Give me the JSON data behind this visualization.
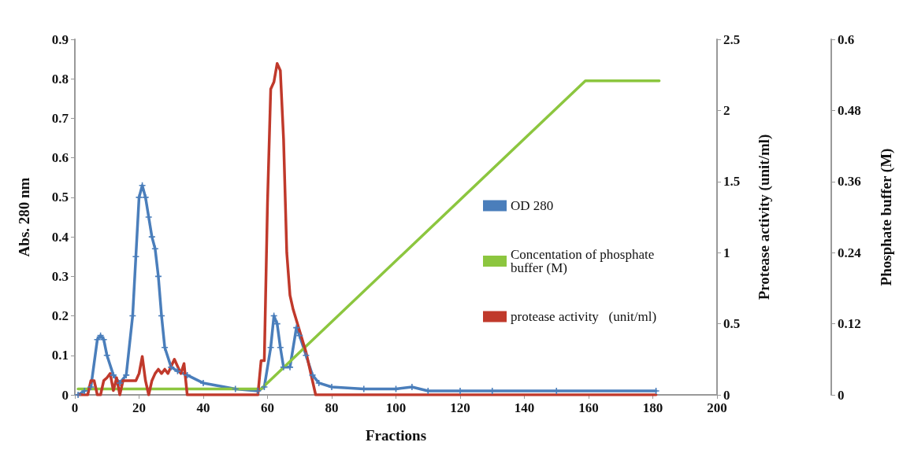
{
  "chart_data": {
    "type": "line",
    "xlabel": "Fractions",
    "ylabel": "Abs. 280 nm",
    "y2label": "Protease activity (unit/ml)",
    "y3label": "Phosphate buffer (M)",
    "xlim": [
      0,
      200
    ],
    "xticks": [
      0,
      20,
      40,
      60,
      80,
      100,
      120,
      140,
      160,
      180,
      200
    ],
    "ylim": [
      0,
      0.9
    ],
    "yticks": [
      0,
      0.1,
      0.2,
      0.3,
      0.4,
      0.5,
      0.6,
      0.7,
      0.8,
      0.9
    ],
    "y2lim": [
      0,
      2.5
    ],
    "y2ticks": [
      0,
      0.5,
      1,
      1.5,
      2,
      2.5
    ],
    "y3lim": [
      0,
      0.6
    ],
    "y3ticks": [
      0,
      0.12,
      0.24,
      0.36,
      0.48,
      0.6
    ],
    "grid": false,
    "legend": "right",
    "series": [
      {
        "name": "OD 280",
        "color": "#4a7ebb",
        "marker": "cross",
        "x": [
          1,
          3,
          5,
          7,
          8,
          9,
          10,
          12,
          14,
          16,
          18,
          19,
          20,
          21,
          22,
          23,
          24,
          25,
          26,
          27,
          28,
          30,
          32,
          35,
          40,
          50,
          57,
          59,
          61,
          62,
          63,
          64,
          65,
          67,
          69,
          70,
          72,
          74,
          76,
          80,
          90,
          100,
          105,
          110,
          120,
          130,
          150,
          181
        ],
        "values": [
          0,
          0.01,
          0.02,
          0.14,
          0.15,
          0.14,
          0.1,
          0.05,
          0.03,
          0.05,
          0.2,
          0.35,
          0.5,
          0.53,
          0.5,
          0.45,
          0.4,
          0.37,
          0.3,
          0.2,
          0.12,
          0.07,
          0.06,
          0.05,
          0.03,
          0.015,
          0.01,
          0.02,
          0.12,
          0.2,
          0.18,
          0.12,
          0.07,
          0.07,
          0.17,
          0.15,
          0.1,
          0.05,
          0.03,
          0.02,
          0.015,
          0.015,
          0.02,
          0.01,
          0.01,
          0.01,
          0.01,
          0.01
        ]
      },
      {
        "name": "Concentation of phosphate buffer (M)",
        "color": "#8cc63f",
        "marker": "none",
        "axis": "y3",
        "x": [
          1,
          58,
          159,
          182
        ],
        "values": [
          0.01,
          0.01,
          0.53,
          0.53
        ]
      },
      {
        "name": "protease activity   (unit/ml)",
        "color": "#c0392b",
        "marker": "none",
        "axis": "y2",
        "x": [
          1,
          4,
          5,
          6,
          7,
          8,
          9,
          10,
          11,
          12,
          13,
          14,
          15,
          16,
          18,
          19,
          20,
          21,
          22,
          23,
          24,
          25,
          26,
          27,
          28,
          29,
          30,
          31,
          32,
          33,
          34,
          35,
          57,
          58,
          59,
          60,
          61,
          62,
          63,
          64,
          65,
          66,
          67,
          68,
          72,
          75,
          181
        ],
        "values": [
          0,
          0,
          0.1,
          0.1,
          0,
          0,
          0.1,
          0.12,
          0.15,
          0.03,
          0.12,
          0,
          0.1,
          0.1,
          0.1,
          0.1,
          0.15,
          0.27,
          0.1,
          0,
          0.1,
          0.15,
          0.18,
          0.15,
          0.18,
          0.15,
          0.2,
          0.25,
          0.2,
          0.15,
          0.22,
          0,
          0,
          0.24,
          0.24,
          1.35,
          2.15,
          2.2,
          2.33,
          2.28,
          1.8,
          1,
          0.7,
          0.6,
          0.3,
          0,
          0
        ]
      }
    ]
  }
}
